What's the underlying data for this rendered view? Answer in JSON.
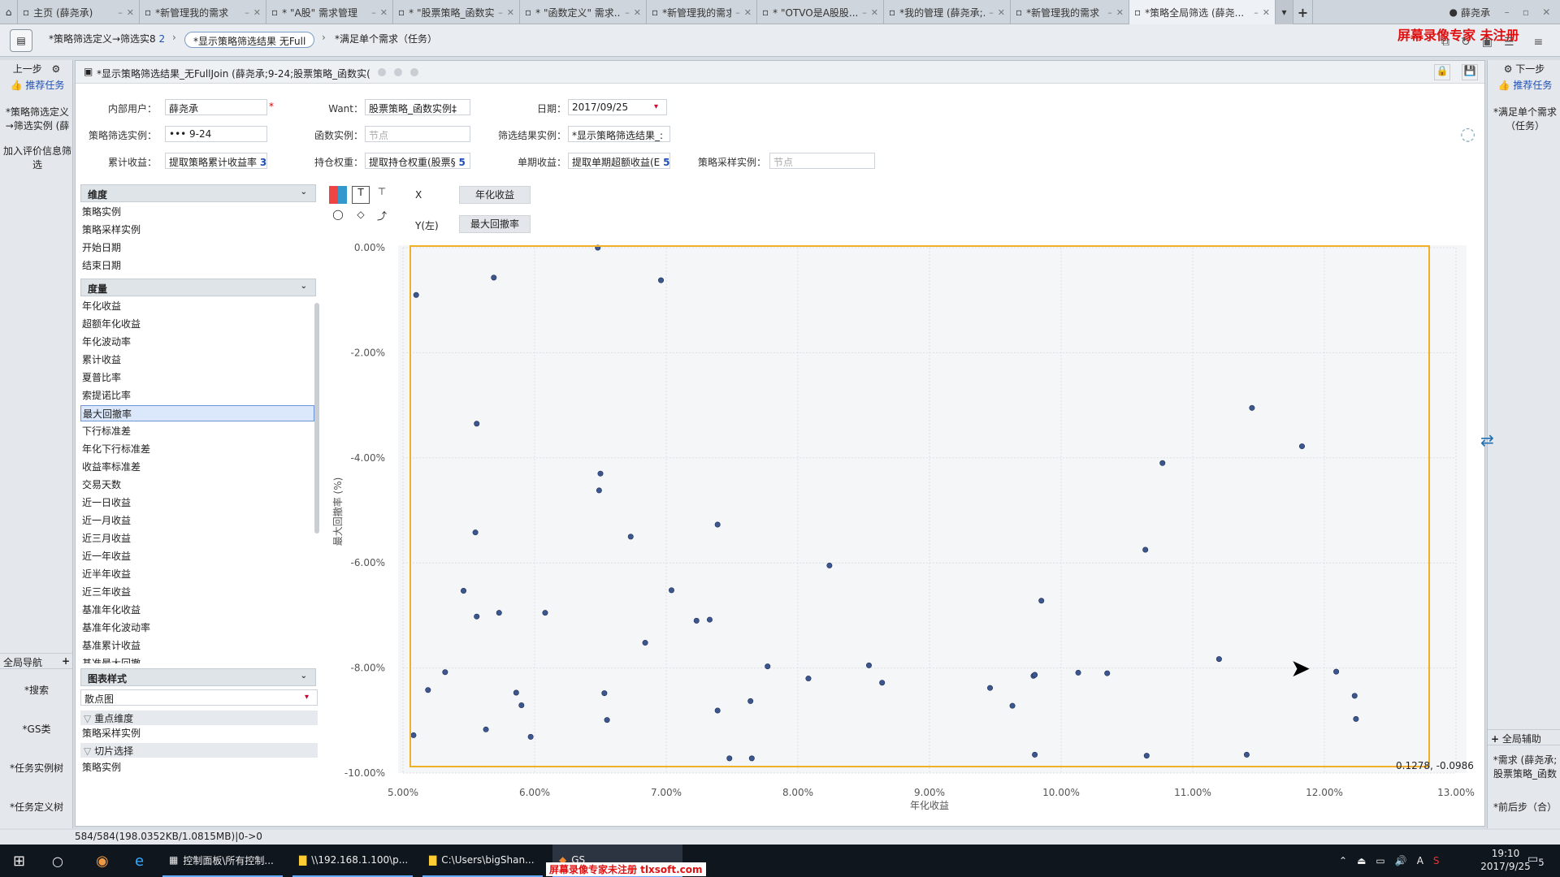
{
  "tabs": [
    {
      "label": "主页 (薛尧承)",
      "active": false
    },
    {
      "label": "*新管理我的需求",
      "active": false
    },
    {
      "label": "* \"A股\" 需求管理",
      "active": false
    },
    {
      "label": "* \"股票策略_函数实...",
      "active": false
    },
    {
      "label": "* \"函数定义\" 需求...",
      "active": false
    },
    {
      "label": "*新管理我的需求",
      "active": false
    },
    {
      "label": "* \"OTVO是A股股...",
      "active": false
    },
    {
      "label": "*我的管理 (薛尧承;...",
      "active": false
    },
    {
      "label": "*新管理我的需求",
      "active": false
    },
    {
      "label": "*策略全局筛选 (薛尧...",
      "active": true
    }
  ],
  "user_name": "薛尧承",
  "watermark_top": "屏幕录像专家  未注册",
  "watermark_bottom": "屏幕录像专家未注册 tlxsoft.com",
  "breadcrumb": {
    "step1": "*策略筛选定义→筛选实8",
    "step1_count": "2",
    "step2": "*显示策略筛选结果 无Full",
    "step3": "*满足单个需求（任务）"
  },
  "left_nav": {
    "prev": "上一步",
    "recommend": "推荐任务",
    "item1": "*策略筛选定义→筛选实例 (薛",
    "item2": "加入评价信息筛选",
    "global_nav": "全局导航",
    "search": "*搜索",
    "gs": "*GS类",
    "task_tree": "*任务实例树",
    "task_def_tree": "*任务定义树"
  },
  "right_nav": {
    "next": "下一步",
    "recommend": "推荐任务",
    "item1": "*满足单个需求（任务）",
    "global_help": "全局辅助",
    "req": "*需求 (薛尧承; 股票策略_函数",
    "prev_step": "*前后步（合）"
  },
  "window_title": "*显示策略筛选结果_无FullJoin (薛尧承;9-24;股票策略_函数实(",
  "form": {
    "internal_user_label": "内部用户：",
    "internal_user": "薛尧承",
    "want_label": "Want：",
    "want": "股票策略_函数实例‡",
    "date_label": "日期：",
    "date": "2017/09/25",
    "strategy_instance_label": "策略筛选实例：",
    "strategy_instance": "•••        9-24",
    "func_instance_label": "函数实例：",
    "func_instance_placeholder": "节点",
    "filter_result_label": "筛选结果实例：",
    "filter_result": "*显示策略筛选结果_:",
    "cumulative_label": "累计收益：",
    "cumulative": "提取策略累计收益率",
    "cumulative_count": "3",
    "weight_label": "持仓权重：",
    "weight": "提取持仓权重(股票§",
    "weight_count": "5",
    "period_label": "单期收益：",
    "period": "提取单期超额收益(E",
    "period_count": "5",
    "sample_label": "策略采样实例：",
    "sample_placeholder": "节点"
  },
  "dimension_header": "维度",
  "dimensions": [
    "策略实例",
    "策略采样实例",
    "开始日期",
    "结束日期"
  ],
  "measure_header": "度量",
  "measures": [
    "年化收益",
    "超额年化收益",
    "年化波动率",
    "累计收益",
    "夏普比率",
    "索提诺比率",
    "最大回撤率",
    "下行标准差",
    "年化下行标准差",
    "收益率标准差",
    "交易天数",
    "近一日收益",
    "近一月收益",
    "近三月收益",
    "近一年收益",
    "近半年收益",
    "近三年收益",
    "基准年化收益",
    "基准年化波动率",
    "基准累计收益",
    "基准最大回撤"
  ],
  "selected_measure": "最大回撤率",
  "chart_style_header": "图表样式",
  "chart_style": "散点图",
  "focus_dim_label": "重点维度",
  "focus_dim_value": "策略采样实例",
  "slice_label": "切片选择",
  "slice_value": "策略实例",
  "axis_x_label": "X",
  "axis_x_field": "年化收益",
  "axis_y_label": "Y(左)",
  "axis_y_field": "最大回撤率",
  "hover_readout": "0.1278, -0.0986",
  "status_text": "584/584(198.0352KB/1.0815MB)|0->0",
  "taskbar": {
    "app1": "控制面板\\所有控制...",
    "app2": "\\\\192.168.1.100\\p...",
    "app3": "C:\\Users\\bigShan...",
    "app4": "GS",
    "time": "19:10",
    "date": "2017/9/25",
    "ime": "A",
    "notif": "5"
  },
  "chart_data": {
    "type": "scatter",
    "xlabel": "年化收益",
    "ylabel": "最大回撤率 (%)",
    "xlim": [
      0.05,
      0.13
    ],
    "ylim": [
      -10,
      0
    ],
    "x_ticks": [
      "5.00%",
      "6.00%",
      "7.00%",
      "8.00%",
      "9.00%",
      "10.00%",
      "11.00%",
      "12.00%",
      "13.00%"
    ],
    "y_ticks": [
      "0.00%",
      "-2.00%",
      "-4.00%",
      "-6.00%",
      "-8.00%",
      "-10.00%"
    ],
    "grid": true,
    "points": [
      [
        0.051,
        -0.9
      ],
      [
        0.0508,
        -9.28
      ],
      [
        0.0519,
        -8.42
      ],
      [
        0.0532,
        -8.08
      ],
      [
        0.0546,
        -6.53
      ],
      [
        0.0556,
        -3.35
      ],
      [
        0.0555,
        -5.42
      ],
      [
        0.0556,
        -7.02
      ],
      [
        0.0563,
        -9.17
      ],
      [
        0.0569,
        -0.57
      ],
      [
        0.0573,
        -6.95
      ],
      [
        0.0586,
        -8.47
      ],
      [
        0.059,
        -8.71
      ],
      [
        0.0597,
        -9.31
      ],
      [
        0.0608,
        -6.95
      ],
      [
        0.0648,
        0.0
      ],
      [
        0.065,
        -4.3
      ],
      [
        0.0649,
        -4.62
      ],
      [
        0.0653,
        -8.48
      ],
      [
        0.0655,
        -8.99
      ],
      [
        0.0673,
        -5.5
      ],
      [
        0.0684,
        -7.52
      ],
      [
        0.0696,
        -0.62
      ],
      [
        0.0704,
        -6.52
      ],
      [
        0.0723,
        -7.1
      ],
      [
        0.0733,
        -7.08
      ],
      [
        0.0739,
        -5.27
      ],
      [
        0.0739,
        -8.81
      ],
      [
        0.0748,
        -9.72
      ],
      [
        0.0764,
        -8.63
      ],
      [
        0.0765,
        -9.72
      ],
      [
        0.0777,
        -7.97
      ],
      [
        0.0808,
        -8.2
      ],
      [
        0.0824,
        -6.05
      ],
      [
        0.0854,
        -7.95
      ],
      [
        0.0864,
        -8.28
      ],
      [
        0.0946,
        -8.38
      ],
      [
        0.0963,
        -8.72
      ],
      [
        0.0979,
        -8.15
      ],
      [
        0.098,
        -9.65
      ],
      [
        0.098,
        -8.13
      ],
      [
        0.0985,
        -6.72
      ],
      [
        0.1013,
        -8.09
      ],
      [
        0.1035,
        -8.1
      ],
      [
        0.1064,
        -5.75
      ],
      [
        0.1065,
        -9.67
      ],
      [
        0.1077,
        -4.1
      ],
      [
        0.112,
        -7.83
      ],
      [
        0.1141,
        -9.65
      ],
      [
        0.1145,
        -3.05
      ],
      [
        0.1183,
        -3.78
      ],
      [
        0.1209,
        -8.07
      ],
      [
        0.1223,
        -8.53
      ],
      [
        0.1224,
        -8.97
      ]
    ]
  }
}
